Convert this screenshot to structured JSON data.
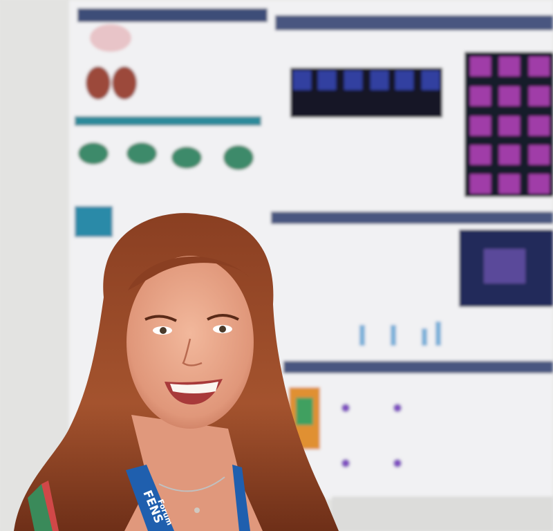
{
  "lanyard": {
    "brand": "FENS",
    "event": "Forum"
  }
}
